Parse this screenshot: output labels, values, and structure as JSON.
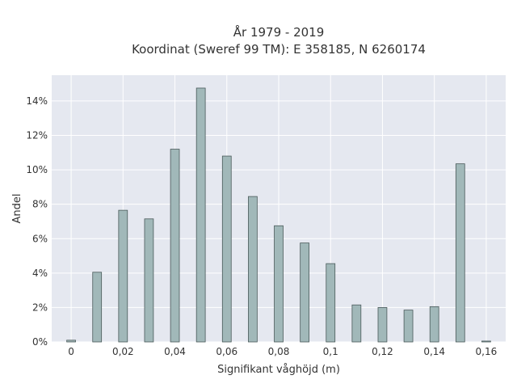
{
  "chart_data": {
    "type": "bar",
    "title_line1": "År 1979 - 2019",
    "title_line2": "Koordinat (Sweref 99 TM): E 358185, N 6260174",
    "xlabel": "Signifikant våghöjd (m)",
    "ylabel": "Andel",
    "x": [
      0,
      0.01,
      0.02,
      0.03,
      0.04,
      0.05,
      0.06,
      0.07,
      0.08,
      0.09,
      0.1,
      0.11,
      0.12,
      0.13,
      0.14,
      0.15,
      0.16
    ],
    "values": [
      0.1,
      4.05,
      7.65,
      7.15,
      11.2,
      14.75,
      10.8,
      8.45,
      6.75,
      5.75,
      4.55,
      2.15,
      2.0,
      1.85,
      2.05,
      10.35,
      0.05
    ],
    "xlim": [
      -0.0075,
      0.1675
    ],
    "ylim": [
      0,
      15.5
    ],
    "x_ticks": [
      {
        "value": 0,
        "label": "0"
      },
      {
        "value": 0.02,
        "label": "0,02"
      },
      {
        "value": 0.04,
        "label": "0,04"
      },
      {
        "value": 0.06,
        "label": "0,06"
      },
      {
        "value": 0.08,
        "label": "0,08"
      },
      {
        "value": 0.1,
        "label": "0,1"
      },
      {
        "value": 0.12,
        "label": "0,12"
      },
      {
        "value": 0.14,
        "label": "0,14"
      },
      {
        "value": 0.16,
        "label": "0,16"
      }
    ],
    "y_ticks": [
      {
        "value": 0,
        "label": "0%"
      },
      {
        "value": 2,
        "label": "2%"
      },
      {
        "value": 4,
        "label": "4%"
      },
      {
        "value": 6,
        "label": "6%"
      },
      {
        "value": 8,
        "label": "8%"
      },
      {
        "value": 10,
        "label": "10%"
      },
      {
        "value": 12,
        "label": "12%"
      },
      {
        "value": 14,
        "label": "14%"
      }
    ],
    "grid": true,
    "legend": "none",
    "colors": {
      "plot_background": "#e5e8f0",
      "grid": "#ffffff",
      "bar_fill": "#a1b8b9",
      "bar_edge": "#4a5a5a"
    }
  }
}
